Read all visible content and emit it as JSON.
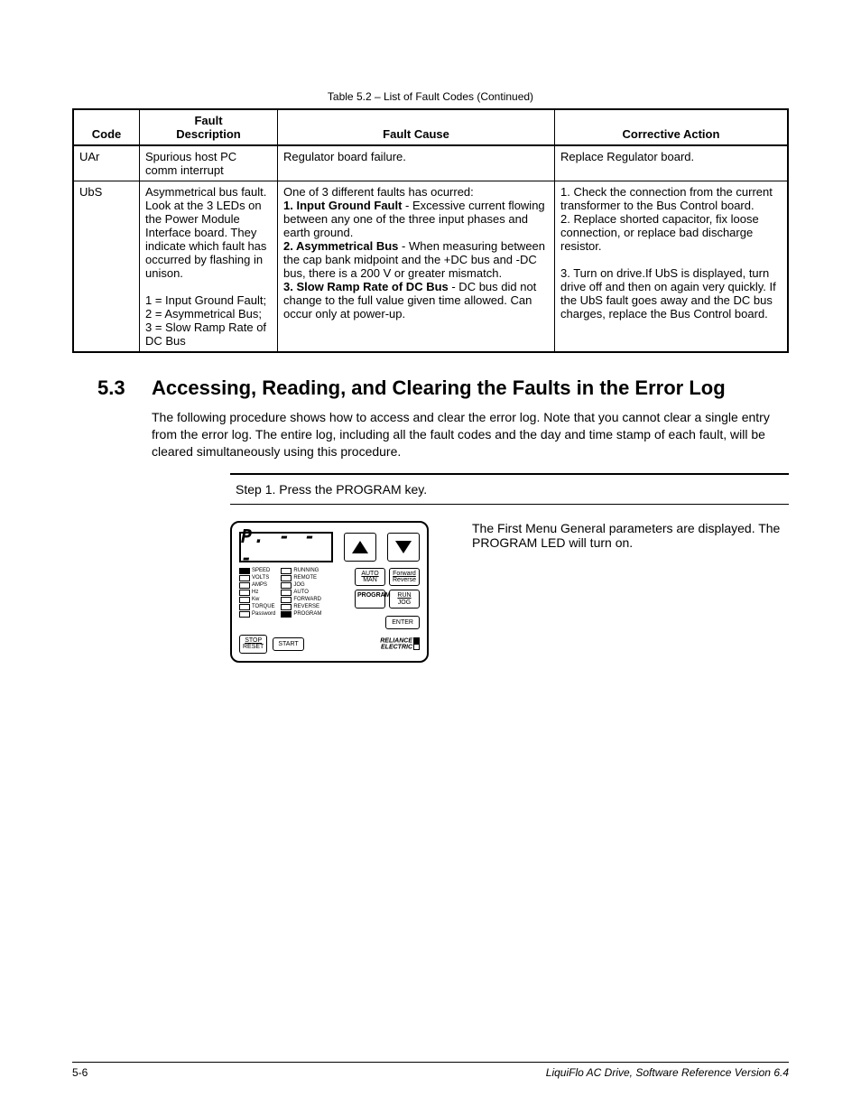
{
  "table_caption": "Table 5.2 – List of Fault Codes (Continued)",
  "table": {
    "headers": {
      "code": "Code",
      "fault_desc_top": "Fault",
      "fault_desc_bottom": "Description",
      "cause": "Fault Cause",
      "action": "Corrective Action"
    },
    "rows": [
      {
        "code": "UAr",
        "desc": "Spurious host PC comm interrupt",
        "cause": "Regulator board failure.",
        "action": "Replace Regulator board."
      },
      {
        "code": "UbS",
        "desc_html": "Asymmetrical bus fault. Look at the 3 LEDs on the Power Module Interface board. They indicate which fault has occurred by flashing in unison.<br><br>1 = Input Ground Fault;<br>2 = Asymmetrical Bus;<br>3 = Slow Ramp Rate of DC Bus",
        "cause_html": "One of 3 different faults has ocurred:<br><b>1. Input Ground Fault</b> - Excessive current flowing between any one of the three input phases and earth ground.<br><b>2. Asymmetrical Bus</b> - When measuring between the cap bank midpoint and the +DC bus and -DC bus, there is a 200 V or greater mismatch.<br><b>3. Slow Ramp Rate of DC Bus</b> - DC bus did not change to the full value given time allowed. Can occur only at power-up.",
        "action_html": "1. Check the connection from the current transformer to the Bus Control board.<br>2. Replace shorted capacitor, fix loose connection, or replace bad discharge resistor.<br><br>3. Turn on drive.If UbS is displayed, turn drive off and then on again very quickly. If the UbS fault goes away and the DC bus charges, replace the Bus Control board."
      }
    ]
  },
  "section": {
    "number": "5.3",
    "title": "Accessing, Reading, and Clearing the Faults in the Error Log",
    "paragraph": "The following procedure shows how to access and clear the error log. Note that you cannot clear a single entry from the error log. The entire log, including all the fault codes and the day and time stamp of each fault, will be cleared simultaneously using this procedure."
  },
  "step": {
    "text": "Step 1. Press the PROGRAM key.",
    "result": "The First Menu General parameters are displayed. The PROGRAM LED will turn on."
  },
  "panel": {
    "display": "P. - - -",
    "leds_left": [
      "SPEED",
      "VOLTS",
      "AMPS",
      "Hz",
      "Kw",
      "TORQUE",
      "Password"
    ],
    "leds_right": [
      "RUNNING",
      "REMOTE",
      "JOG",
      "AUTO",
      "FORWARD",
      "REVERSE",
      "PROGRAM"
    ],
    "led_left_filled": [
      true,
      false,
      false,
      false,
      false,
      false,
      false
    ],
    "led_right_filled": [
      false,
      false,
      false,
      false,
      false,
      false,
      true
    ],
    "auto_man_top": "AUTO",
    "auto_man_bottom": "MAN",
    "fwd_top": "Forward",
    "fwd_bottom": "Reverse",
    "program": "PROGRAM",
    "run_top": "RUN",
    "run_bottom": "JOG",
    "enter": "ENTER",
    "stop_top": "STOP",
    "stop_bottom": "RESET",
    "start": "START",
    "brand_top": "RELIANCE",
    "brand_bottom": "ELECTRIC"
  },
  "footer": {
    "page": "5-6",
    "doc": "LiquiFlo AC Drive, Software Reference Version 6.4"
  }
}
